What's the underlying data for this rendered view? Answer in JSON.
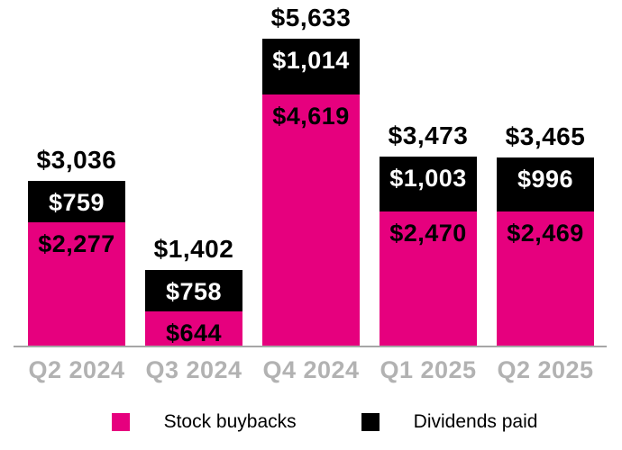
{
  "chart_data": {
    "type": "bar",
    "stacked": true,
    "title": "",
    "categories": [
      "Q2 2024",
      "Q3 2024",
      "Q4 2024",
      "Q1 2025",
      "Q2 2025"
    ],
    "series": [
      {
        "name": "Stock buybacks",
        "color": "#E6007E",
        "label_color": "#000000",
        "values": [
          2277,
          644,
          4619,
          2470,
          2469
        ],
        "labels": [
          "$2,277",
          "$644",
          "$4,619",
          "$2,470",
          "$2,469"
        ]
      },
      {
        "name": "Dividends paid",
        "color": "#000000",
        "label_color": "#FFFFFF",
        "values": [
          759,
          758,
          1014,
          1003,
          996
        ],
        "labels": [
          "$759",
          "$758",
          "$1,014",
          "$1,003",
          "$996"
        ]
      }
    ],
    "stack_order_top_to_bottom": [
      "Dividends paid",
      "Stock buybacks"
    ],
    "totals": [
      3036,
      1402,
      5633,
      3473,
      3465
    ],
    "total_labels": [
      "$3,036",
      "$1,402",
      "$5,633",
      "$3,473",
      "$3,465"
    ],
    "ylim": [
      0,
      5633
    ],
    "grid": false,
    "legend_position": "bottom",
    "axis_line_color": "#A6A6A6",
    "axis_label_color": "#B2B2B2"
  },
  "legend": {
    "items": [
      {
        "label": "Stock buybacks",
        "color": "#E6007E"
      },
      {
        "label": "Dividends paid",
        "color": "#000000"
      }
    ]
  }
}
